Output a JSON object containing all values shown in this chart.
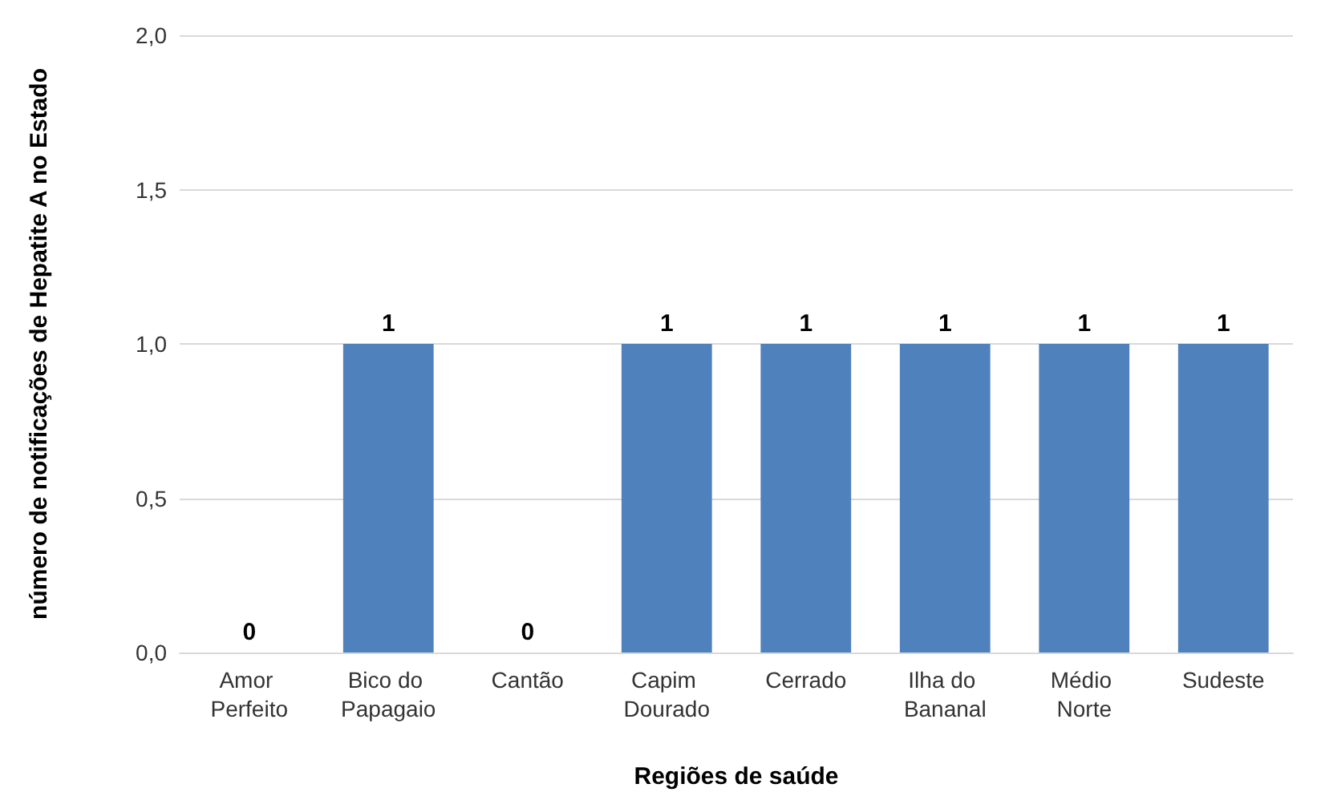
{
  "chart_data": {
    "type": "bar",
    "xlabel": "Regiões de saúde",
    "ylabel": "número de notificações de Hepatite A no Estado",
    "categories": [
      "Amor Perfeito",
      "Bico do Papagaio",
      "Cantão",
      "Capim Dourado",
      "Cerrado",
      "Ilha do Bananal",
      "Médio Norte",
      "Sudeste"
    ],
    "values": [
      0,
      1,
      0,
      1,
      1,
      1,
      1,
      1
    ],
    "color": "#4f81bd",
    "ylim": [
      0,
      2
    ],
    "yticks": [
      {
        "value": 0,
        "label": "0,0"
      },
      {
        "value": 0.5,
        "label": "0,5"
      },
      {
        "value": 1,
        "label": "1,0"
      },
      {
        "value": 1.5,
        "label": "1,5"
      },
      {
        "value": 2,
        "label": "2,0"
      }
    ],
    "grid": "y",
    "data_labels": true
  }
}
